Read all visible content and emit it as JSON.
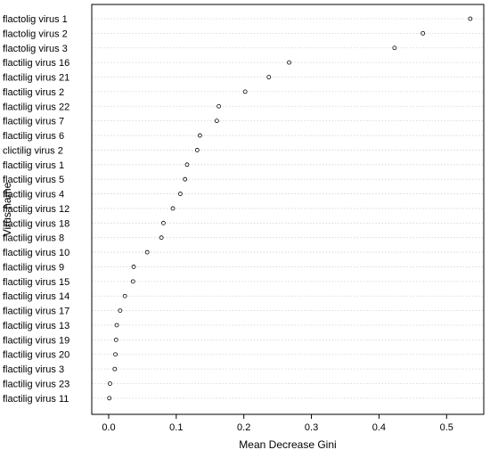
{
  "chart_data": {
    "type": "scatter",
    "title": "",
    "xlabel": "Mean Decrease Gini",
    "ylabel": "Virus name",
    "xlim": [
      -0.025,
      0.555
    ],
    "xticks": [
      "0.0",
      "0.1",
      "0.2",
      "0.3",
      "0.4",
      "0.5"
    ],
    "xtick_values": [
      0.0,
      0.1,
      0.2,
      0.3,
      0.4,
      0.5
    ],
    "grid": "horizontal dotted",
    "categories": [
      "flactolig virus 1",
      "flactolig virus 2",
      "flactolig virus 3",
      "flactilig virus 16",
      "flactilig virus 21",
      "flactilig virus 2",
      "flactilig virus 22",
      "flactilig virus 7",
      "flactilig virus 6",
      "clictilig virus 2",
      "flactilig virus 1",
      "flactilig virus 5",
      "flactilig virus 4",
      "flactilig virus 12",
      "flactilig virus 18",
      "flactilig virus 8",
      "flactilig virus 10",
      "flactilig virus 9",
      "flactilig virus 15",
      "flactilig virus 14",
      "flactilig virus 17",
      "flactilig virus 13",
      "flactilig virus 19",
      "flactilig virus 20",
      "flactilig virus 3",
      "flactilig virus 23",
      "flactilig virus 11"
    ],
    "values": [
      0.535,
      0.465,
      0.423,
      0.267,
      0.237,
      0.202,
      0.163,
      0.16,
      0.135,
      0.131,
      0.116,
      0.113,
      0.106,
      0.095,
      0.081,
      0.078,
      0.057,
      0.037,
      0.036,
      0.024,
      0.017,
      0.012,
      0.011,
      0.01,
      0.009,
      0.002,
      0.001
    ]
  }
}
